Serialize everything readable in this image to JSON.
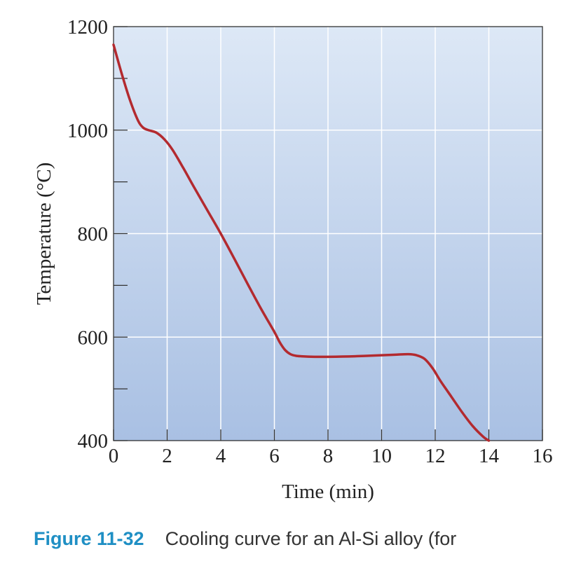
{
  "chart_data": {
    "type": "line",
    "xlabel": "Time (min)",
    "ylabel": "Temperature (°C)",
    "xlim": [
      0,
      16
    ],
    "ylim": [
      400,
      1200
    ],
    "x_ticks": [
      0,
      2,
      4,
      6,
      8,
      10,
      12,
      14,
      16
    ],
    "y_ticks": [
      400,
      600,
      800,
      1000,
      1200
    ],
    "grid": true,
    "series": [
      {
        "x": [
          0,
          0.3,
          0.6,
          0.9,
          1.1,
          1.3,
          1.6,
          1.9,
          2.2,
          2.6,
          3.0,
          3.5,
          4.0,
          4.5,
          5.0,
          5.5,
          6.0,
          6.2,
          6.4,
          6.6,
          6.8,
          7.0,
          7.5,
          8.0,
          9.0,
          10.0,
          10.5,
          11.0,
          11.3,
          11.6,
          11.9,
          12.2,
          12.6,
          13.0,
          13.4,
          13.8,
          14.0
        ],
        "y": [
          1165,
          1110,
          1060,
          1020,
          1005,
          1000,
          995,
          982,
          962,
          927,
          890,
          845,
          800,
          752,
          703,
          655,
          610,
          590,
          575,
          567,
          564,
          563,
          562,
          562,
          563,
          565,
          566,
          567,
          565,
          558,
          540,
          515,
          485,
          455,
          428,
          407,
          400
        ]
      }
    ],
    "line_color": "#b32a2f"
  },
  "caption": {
    "number": "Figure 11-32",
    "text": "Cooling curve for an Al-Si alloy (for"
  }
}
